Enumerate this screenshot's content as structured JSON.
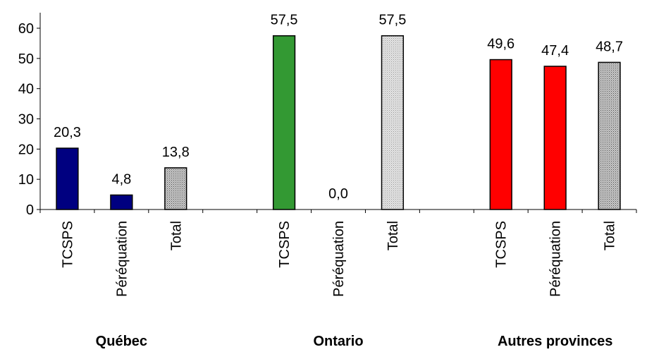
{
  "chart_data": {
    "type": "bar",
    "title": "",
    "xlabel": "",
    "ylabel": "",
    "ylim": [
      0,
      60
    ],
    "yticks": [
      "0",
      "10",
      "20",
      "30",
      "40",
      "50",
      "60"
    ],
    "grid": false,
    "legend": "none",
    "groups": [
      {
        "name": "Québec",
        "bars": [
          {
            "category": "TCSPS",
            "value": 20.3,
            "label": "20,3",
            "color": "#000080",
            "pattern": "solid"
          },
          {
            "category": "Péréquation",
            "value": 4.8,
            "label": "4,8",
            "color": "#000080",
            "pattern": "solid"
          },
          {
            "category": "Total",
            "value": 13.8,
            "label": "13,8",
            "color": "#a0a0a0",
            "pattern": "dotted"
          }
        ]
      },
      {
        "name": "Ontario",
        "bars": [
          {
            "category": "TCSPS",
            "value": 57.5,
            "label": "57,5",
            "color": "#339933",
            "pattern": "solid"
          },
          {
            "category": "Péréquation",
            "value": 0.0,
            "label": "0,0",
            "color": "#339933",
            "pattern": "solid"
          },
          {
            "category": "Total",
            "value": 57.5,
            "label": "57,5",
            "color": "#c0c0c0",
            "pattern": "dotted"
          }
        ]
      },
      {
        "name": "Autres provinces",
        "bars": [
          {
            "category": "TCSPS",
            "value": 49.6,
            "label": "49,6",
            "color": "#ff0000",
            "pattern": "solid"
          },
          {
            "category": "Péréquation",
            "value": 47.4,
            "label": "47,4",
            "color": "#ff0000",
            "pattern": "solid"
          },
          {
            "category": "Total",
            "value": 48.7,
            "label": "48,7",
            "color": "#a0a0a0",
            "pattern": "dotted"
          }
        ]
      }
    ]
  }
}
